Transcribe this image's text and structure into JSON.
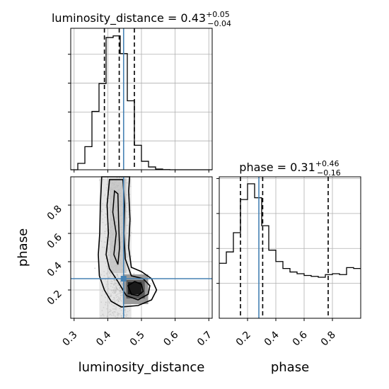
{
  "chart_data": {
    "type": "corner",
    "truth_color": "#4682b4",
    "parameters": [
      "luminosity_distance",
      "phase"
    ],
    "truths": {
      "luminosity_distance": 0.447,
      "phase": 0.28
    },
    "marginals": [
      {
        "name": "luminosity_distance",
        "title_name": "luminosity_distance = 0.43",
        "title_sup": "+0.05",
        "title_sub": "−0.04",
        "median": 0.43,
        "quantiles": [
          0.39,
          0.434,
          0.479
        ],
        "xlim": [
          0.29,
          0.71
        ],
        "xticks": [
          "0.3",
          "0.4",
          "0.5",
          "0.6",
          "0.7"
        ],
        "hist_edges": [
          0.29,
          0.311,
          0.332,
          0.353,
          0.374,
          0.395,
          0.416,
          0.437,
          0.458,
          0.479,
          0.5,
          0.521,
          0.542,
          0.563,
          0.584,
          0.605,
          0.626,
          0.647,
          0.668,
          0.689,
          0.71
        ],
        "hist_counts": [
          0,
          55,
          200,
          505,
          747,
          1145,
          1159,
          1006,
          597,
          212,
          73,
          24,
          6,
          1,
          0,
          0,
          0,
          0,
          0,
          0
        ],
        "ymax": 1225
      },
      {
        "name": "phase",
        "title_name": "phase = 0.31",
        "title_sup": "+0.46",
        "title_sub": "−0.16",
        "median": 0.31,
        "quantiles": [
          0.15,
          0.307,
          0.77
        ],
        "xlim": [
          0.0,
          1.0
        ],
        "xticks": [
          "0.2",
          "0.4",
          "0.6",
          "0.8"
        ],
        "hist_edges": [
          0.0,
          0.05,
          0.1,
          0.15,
          0.2,
          0.25,
          0.3,
          0.35,
          0.4,
          0.45,
          0.5,
          0.55,
          0.6,
          0.65,
          0.7,
          0.75,
          0.8,
          0.85,
          0.9,
          0.95,
          1.0
        ],
        "hist_counts": [
          315,
          380,
          490,
          680,
          770,
          690,
          530,
          390,
          325,
          285,
          265,
          255,
          245,
          240,
          235,
          250,
          255,
          250,
          290,
          285
        ],
        "ymax": 810
      }
    ],
    "joint": {
      "x_param": "luminosity_distance",
      "y_param": "phase",
      "xlim": [
        0.29,
        0.71
      ],
      "ylim": [
        0.0,
        1.0
      ],
      "xticks": [
        "0.3",
        "0.4",
        "0.5",
        "0.6",
        "0.7"
      ],
      "yticks": [
        "0.2",
        "0.4",
        "0.6",
        "0.8"
      ],
      "xlabel": "luminosity_distance",
      "ylabel": "phase",
      "density_center": [
        0.47,
        0.21
      ],
      "contour_levels": 3
    },
    "bottom_right_xlabel": "phase",
    "grid": true
  }
}
